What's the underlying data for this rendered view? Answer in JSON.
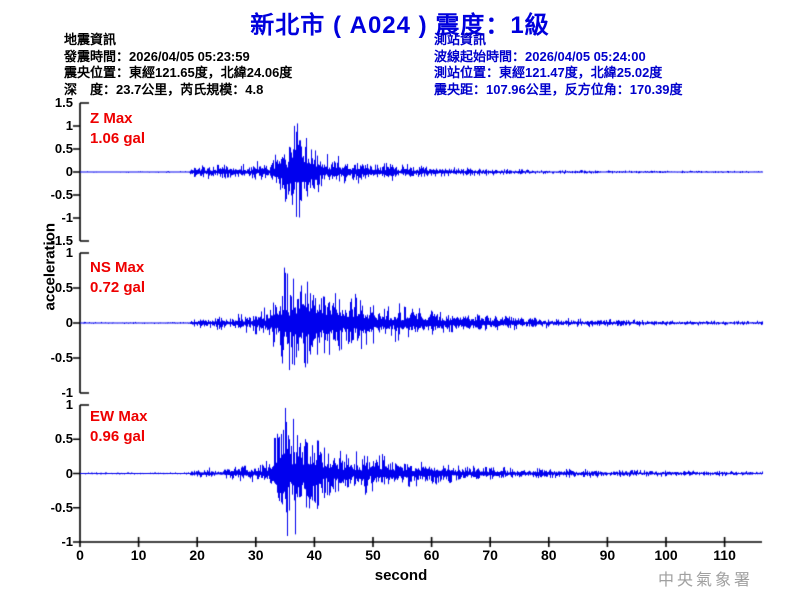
{
  "title": "新北市 ( A024 )  震度：1級",
  "event_info": {
    "heading": "地震資訊",
    "lines": [
      "發震時間：2026/04/05 05:23:59",
      "震央位置：東經121.65度，北緯24.06度",
      "深　度：23.7公里，芮氏規模：4.8"
    ]
  },
  "station_info": {
    "heading": "測站資訊",
    "lines": [
      "波線起始時間：2026/04/05 05:24:00",
      "測站位置：東經121.47度，北緯25.02度",
      "震央距：107.96公里，反方位角：170.39度"
    ]
  },
  "watermark": "中央氣象署",
  "colors": {
    "title_blue": "#0000DD",
    "station_text_blue": "#0000CC",
    "event_text_black": "#000000",
    "trace_blue": "#0000EE",
    "channel_label_red": "#EE0000",
    "axis_black": "#000000",
    "watermark_gray": "#A0A0A0"
  },
  "chart_data": {
    "type": "line",
    "subtype": "seismogram-3-component",
    "xlabel": "second",
    "ylabel": "acceleration",
    "y_unit": "gal",
    "x_range": [
      0,
      116.4
    ],
    "x_ticks": [
      0,
      10,
      20,
      30,
      40,
      50,
      60,
      70,
      80,
      90,
      100,
      110
    ],
    "grid": false,
    "traces": [
      {
        "name": "Z",
        "label": "Z Max",
        "max_label": "1.06 gal",
        "max_gal": 1.06,
        "peak_time_s": 37,
        "p_onset_s": 19,
        "y_range": [
          -1.5,
          1.5
        ],
        "y_tick_labels": [
          "1.5",
          "1",
          "0.5",
          "0",
          "-0.5",
          "-1",
          "-1.5"
        ],
        "envelope_gal": [
          [
            0,
            0.018
          ],
          [
            18.5,
            0.018
          ],
          [
            19,
            0.1
          ],
          [
            20,
            0.13
          ],
          [
            22,
            0.16
          ],
          [
            24,
            0.14
          ],
          [
            26,
            0.16
          ],
          [
            28,
            0.15
          ],
          [
            30,
            0.2
          ],
          [
            32,
            0.25
          ],
          [
            33,
            0.35
          ],
          [
            34,
            0.45
          ],
          [
            35,
            0.6
          ],
          [
            36,
            0.85
          ],
          [
            37,
            1.06
          ],
          [
            38,
            0.95
          ],
          [
            39,
            0.65
          ],
          [
            40,
            0.5
          ],
          [
            41,
            0.42
          ],
          [
            42,
            0.38
          ],
          [
            44,
            0.32
          ],
          [
            46,
            0.28
          ],
          [
            48,
            0.25
          ],
          [
            50,
            0.22
          ],
          [
            53,
            0.18
          ],
          [
            56,
            0.16
          ],
          [
            60,
            0.13
          ],
          [
            64,
            0.1
          ],
          [
            68,
            0.08
          ],
          [
            72,
            0.06
          ],
          [
            78,
            0.05
          ],
          [
            85,
            0.04
          ],
          [
            95,
            0.03
          ],
          [
            105,
            0.025
          ],
          [
            116.4,
            0.02
          ]
        ]
      },
      {
        "name": "NS",
        "label": "NS Max",
        "max_label": "0.72 gal",
        "max_gal": 0.72,
        "peak_time_s": 35.3,
        "p_onset_s": 19,
        "y_range": [
          -1,
          1
        ],
        "y_tick_labels": [
          "1",
          "0.5",
          "0",
          "-0.5",
          "-1"
        ],
        "envelope_gal": [
          [
            0,
            0.015
          ],
          [
            18.5,
            0.015
          ],
          [
            19,
            0.06
          ],
          [
            21,
            0.08
          ],
          [
            23,
            0.1
          ],
          [
            25,
            0.1
          ],
          [
            27,
            0.12
          ],
          [
            29,
            0.13
          ],
          [
            31,
            0.18
          ],
          [
            32,
            0.25
          ],
          [
            33,
            0.35
          ],
          [
            34,
            0.55
          ],
          [
            35,
            0.72
          ],
          [
            36,
            0.68
          ],
          [
            37,
            0.7
          ],
          [
            38,
            0.6
          ],
          [
            39,
            0.55
          ],
          [
            40,
            0.5
          ],
          [
            41,
            0.52
          ],
          [
            42,
            0.45
          ],
          [
            43,
            0.42
          ],
          [
            44,
            0.45
          ],
          [
            45,
            0.4
          ],
          [
            46,
            0.42
          ],
          [
            47,
            0.38
          ],
          [
            48,
            0.35
          ],
          [
            50,
            0.3
          ],
          [
            52,
            0.28
          ],
          [
            54,
            0.25
          ],
          [
            56,
            0.22
          ],
          [
            58,
            0.2
          ],
          [
            60,
            0.18
          ],
          [
            63,
            0.15
          ],
          [
            66,
            0.13
          ],
          [
            70,
            0.11
          ],
          [
            75,
            0.09
          ],
          [
            80,
            0.07
          ],
          [
            86,
            0.06
          ],
          [
            92,
            0.05
          ],
          [
            100,
            0.04
          ],
          [
            108,
            0.035
          ],
          [
            116.4,
            0.03
          ]
        ]
      },
      {
        "name": "EW",
        "label": "EW Max",
        "max_label": "0.96 gal",
        "max_gal": 0.96,
        "peak_time_s": 35,
        "p_onset_s": 19,
        "y_range": [
          -1,
          1
        ],
        "y_tick_labels": [
          "1",
          "0.5",
          "0",
          "-0.5",
          "-1"
        ],
        "envelope_gal": [
          [
            0,
            0.015
          ],
          [
            18.5,
            0.015
          ],
          [
            19,
            0.05
          ],
          [
            21,
            0.07
          ],
          [
            23,
            0.09
          ],
          [
            25,
            0.1
          ],
          [
            27,
            0.11
          ],
          [
            29,
            0.12
          ],
          [
            31,
            0.13
          ],
          [
            32,
            0.18
          ],
          [
            33,
            0.45
          ],
          [
            34,
            0.8
          ],
          [
            35,
            0.96
          ],
          [
            36,
            0.9
          ],
          [
            37,
            0.85
          ],
          [
            38,
            0.75
          ],
          [
            39,
            0.65
          ],
          [
            40,
            0.55
          ],
          [
            41,
            0.5
          ],
          [
            42,
            0.45
          ],
          [
            44,
            0.38
          ],
          [
            46,
            0.33
          ],
          [
            48,
            0.3
          ],
          [
            50,
            0.27
          ],
          [
            52,
            0.24
          ],
          [
            55,
            0.2
          ],
          [
            58,
            0.17
          ],
          [
            61,
            0.15
          ],
          [
            65,
            0.12
          ],
          [
            70,
            0.1
          ],
          [
            75,
            0.08
          ],
          [
            80,
            0.07
          ],
          [
            87,
            0.06
          ],
          [
            95,
            0.05
          ],
          [
            103,
            0.04
          ],
          [
            110,
            0.035
          ],
          [
            116.4,
            0.03
          ]
        ]
      }
    ]
  }
}
